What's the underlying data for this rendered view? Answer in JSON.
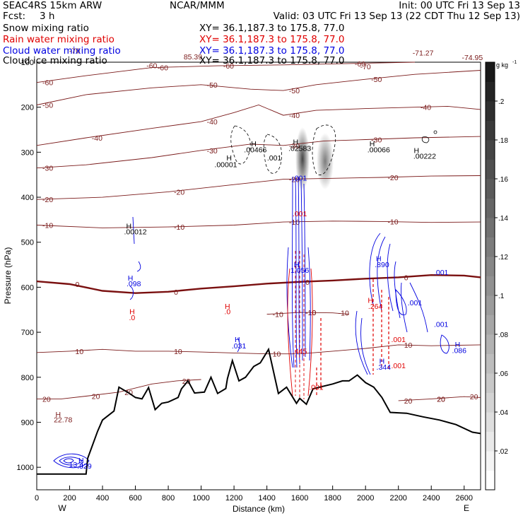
{
  "header": {
    "model": "SEAC4RS 15km ARW",
    "fcst_label": "Fcst:",
    "fcst_value": "3 h",
    "center": "NCAR/MMM",
    "init": "Init: 00 UTC Fri 13 Sep 13",
    "valid": "Valid: 03 UTC Fri 13 Sep 13 (22 CDT Thu 12 Sep 13)"
  },
  "fields": [
    {
      "name": "Snow mixing ratio",
      "xy": "XY=  36.1,187.3 to 175.8, 77.0",
      "color": "#000000"
    },
    {
      "name": "Rain water mixing ratio",
      "xy": "XY=  36.1,187.3 to 175.8, 77.0",
      "color": "#e00000"
    },
    {
      "name": "Cloud water mixing ratio",
      "xy": "XY=  36.1,187.3 to 175.8, 77.0",
      "color": "#0000e0"
    },
    {
      "name": "Cloud ice mixing ratio",
      "xy": "XY=  36.1,187.3 to 175.8, 77.0",
      "color": "#000000"
    }
  ],
  "colors": {
    "temperature": "#7a1a1a",
    "zero_isotherm": "#7a1010",
    "terrain": "#000000",
    "cloud_water": "#0000e0",
    "rain": "#e00000",
    "snow": "#000000"
  },
  "chart_data": {
    "type": "contour-cross-section",
    "xlabel": "Distance (km)",
    "ylabel": "Pressure (hPa)",
    "xlim": [
      0,
      2700
    ],
    "ylim": [
      1050,
      100
    ],
    "x_ticks": [
      "0",
      "200",
      "400",
      "600",
      "800",
      "1000",
      "1200",
      "1400",
      "1600",
      "1800",
      "2000",
      "2200",
      "2400",
      "2600"
    ],
    "y_ticks": [
      "100",
      "200",
      "300",
      "400",
      "500",
      "600",
      "700",
      "800",
      "900",
      "1000"
    ],
    "endpoints": {
      "left": "W",
      "right": "E"
    },
    "colorbar": {
      "unit": "g kg",
      "unit_exp": "-1",
      "ticks": [
        ".2",
        ".18",
        ".16",
        ".14",
        ".12",
        ".1",
        ".08",
        ".06",
        ".04",
        ".02"
      ],
      "range": [
        0,
        0.22
      ]
    },
    "isotherm_labels": [
      "-70",
      "-60",
      "-50",
      "-40",
      "-30",
      "-20",
      "-10",
      "0",
      "10",
      "20"
    ],
    "isotherms": [
      {
        "label": "-60",
        "pts": [
          [
            0,
            145
          ],
          [
            300,
            130
          ],
          [
            700,
            112
          ],
          [
            1100,
            108
          ],
          [
            1500,
            106
          ],
          [
            1900,
            103
          ],
          [
            2300,
            100
          ]
        ]
      },
      {
        "label": "-50",
        "pts": [
          [
            0,
            195
          ],
          [
            300,
            172
          ],
          [
            700,
            157
          ],
          [
            1000,
            150
          ],
          [
            1300,
            160
          ],
          [
            1500,
            163
          ],
          [
            1700,
            150
          ],
          [
            2000,
            138
          ],
          [
            2300,
            127
          ],
          [
            2700,
            118
          ]
        ]
      },
      {
        "label": "-40",
        "pts": [
          [
            0,
            285
          ],
          [
            300,
            268
          ],
          [
            700,
            247
          ],
          [
            1000,
            232
          ],
          [
            1200,
            212
          ],
          [
            1350,
            195
          ],
          [
            1500,
            218
          ],
          [
            1700,
            207
          ],
          [
            2000,
            203
          ],
          [
            2300,
            200
          ],
          [
            2500,
            198
          ],
          [
            2700,
            205
          ]
        ]
      },
      {
        "label": "-30",
        "pts": [
          [
            0,
            335
          ],
          [
            300,
            328
          ],
          [
            700,
            312
          ],
          [
            1000,
            296
          ],
          [
            1300,
            282
          ],
          [
            1500,
            285
          ],
          [
            1750,
            275
          ],
          [
            2000,
            272
          ],
          [
            2300,
            268
          ],
          [
            2700,
            265
          ]
        ]
      },
      {
        "label": "-20",
        "pts": [
          [
            0,
            405
          ],
          [
            400,
            400
          ],
          [
            800,
            388
          ],
          [
            1200,
            372
          ],
          [
            1500,
            360
          ],
          [
            1800,
            358
          ],
          [
            2100,
            356
          ],
          [
            2400,
            353
          ],
          [
            2700,
            352
          ]
        ]
      },
      {
        "label": "-10",
        "pts": [
          [
            0,
            462
          ],
          [
            400,
            468
          ],
          [
            800,
            466
          ],
          [
            1200,
            462
          ],
          [
            1500,
            455
          ],
          [
            1800,
            453
          ],
          [
            2100,
            454
          ],
          [
            2400,
            456
          ],
          [
            2700,
            455
          ]
        ]
      },
      {
        "label": "0",
        "pts": [
          [
            0,
            587
          ],
          [
            200,
            593
          ],
          [
            400,
            608
          ],
          [
            600,
            613
          ],
          [
            800,
            610
          ],
          [
            1000,
            603
          ],
          [
            1200,
            598
          ],
          [
            1400,
            592
          ],
          [
            1600,
            588
          ],
          [
            1800,
            585
          ],
          [
            2000,
            581
          ],
          [
            2200,
            578
          ],
          [
            2400,
            573
          ],
          [
            2600,
            574
          ],
          [
            2700,
            578
          ]
        ]
      },
      {
        "label": "-10",
        "pts": [
          [
            1400,
            660
          ],
          [
            1600,
            656
          ],
          [
            1800,
            657
          ],
          [
            1900,
            660
          ]
        ]
      },
      {
        "label": "10",
        "pts": [
          [
            0,
            745
          ],
          [
            200,
            742
          ],
          [
            400,
            738
          ],
          [
            600,
            742
          ],
          [
            800,
            742
          ],
          [
            1000,
            744
          ],
          [
            1200,
            746
          ],
          [
            1400,
            748
          ],
          [
            1600,
            748
          ],
          [
            1800,
            742
          ],
          [
            2000,
            736
          ],
          [
            2200,
            728
          ],
          [
            2400,
            730
          ],
          [
            2700,
            728
          ]
        ]
      },
      {
        "label": "20",
        "pts": [
          [
            0,
            848
          ],
          [
            150,
            848
          ],
          [
            300,
            842
          ],
          [
            500,
            833
          ],
          [
            700,
            815
          ],
          [
            850,
            808
          ],
          [
            1000,
            805
          ]
        ]
      },
      {
        "label": "20",
        "pts": [
          [
            2200,
            852
          ],
          [
            2400,
            848
          ],
          [
            2600,
            843
          ],
          [
            2700,
            845
          ]
        ]
      }
    ],
    "terrain_pts": [
      [
        0,
        1015
      ],
      [
        300,
        1015
      ],
      [
        310,
        980
      ],
      [
        370,
        920
      ],
      [
        400,
        895
      ],
      [
        470,
        875
      ],
      [
        500,
        822
      ],
      [
        560,
        835
      ],
      [
        600,
        845
      ],
      [
        640,
        848
      ],
      [
        680,
        823
      ],
      [
        720,
        872
      ],
      [
        760,
        858
      ],
      [
        800,
        855
      ],
      [
        860,
        845
      ],
      [
        880,
        826
      ],
      [
        920,
        808
      ],
      [
        960,
        835
      ],
      [
        1020,
        833
      ],
      [
        1060,
        800
      ],
      [
        1100,
        836
      ],
      [
        1150,
        825
      ],
      [
        1160,
        803
      ],
      [
        1190,
        763
      ],
      [
        1230,
        808
      ],
      [
        1270,
        800
      ],
      [
        1320,
        776
      ],
      [
        1360,
        768
      ],
      [
        1410,
        738
      ],
      [
        1470,
        836
      ],
      [
        1520,
        822
      ],
      [
        1580,
        858
      ],
      [
        1600,
        847
      ],
      [
        1640,
        860
      ],
      [
        1680,
        826
      ],
      [
        1720,
        822
      ],
      [
        1800,
        815
      ],
      [
        1860,
        808
      ],
      [
        1900,
        808
      ],
      [
        1950,
        795
      ],
      [
        2000,
        812
      ],
      [
        2050,
        822
      ],
      [
        2100,
        845
      ],
      [
        2150,
        878
      ],
      [
        2250,
        880
      ],
      [
        2350,
        888
      ],
      [
        2450,
        895
      ],
      [
        2550,
        905
      ],
      [
        2650,
        922
      ],
      [
        2700,
        925
      ]
    ],
    "point_labels": [
      {
        "x": 230,
        "p": 80,
        "text": "-70",
        "color": "#7a1a1a"
      },
      {
        "x": 700,
        "p": 113,
        "text": "-60",
        "color": "#7a1a1a"
      },
      {
        "x": 950,
        "p": 94,
        "text": "85.39",
        "color": "#7a1a1a"
      },
      {
        "x": 2350,
        "p": 85,
        "text": "-71.27",
        "color": "#7a1a1a"
      },
      {
        "x": 2000,
        "p": 116,
        "text": "-70",
        "color": "#7a1a1a"
      },
      {
        "x": 2650,
        "p": 95,
        "text": "-74.95",
        "color": "#7a1a1a"
      },
      {
        "x": 1170,
        "p": 318,
        "text": "H",
        "color": "#000000"
      },
      {
        "x": 1150,
        "p": 333,
        "text": ".00001",
        "color": "#000000"
      },
      {
        "x": 1320,
        "p": 287,
        "text": "H",
        "color": "#000000"
      },
      {
        "x": 1330,
        "p": 300,
        "text": ".00466",
        "color": "#000000"
      },
      {
        "x": 1445,
        "p": 318,
        "text": ".001",
        "color": "#000000"
      },
      {
        "x": 1575,
        "p": 283,
        "text": "H",
        "color": "#000000"
      },
      {
        "x": 1600,
        "p": 297,
        "text": ".02583",
        "color": "#000000"
      },
      {
        "x": 2040,
        "p": 287,
        "text": "H",
        "color": "#000000"
      },
      {
        "x": 2080,
        "p": 300,
        "text": ".00066",
        "color": "#000000"
      },
      {
        "x": 2310,
        "p": 302,
        "text": "H",
        "color": "#000000"
      },
      {
        "x": 2360,
        "p": 314,
        "text": ".00222",
        "color": "#000000"
      },
      {
        "x": 560,
        "p": 470,
        "text": "H",
        "color": "#000000"
      },
      {
        "x": 600,
        "p": 482,
        "text": ".00012",
        "color": "#000000"
      },
      {
        "x": 1600,
        "p": 363,
        "text": ".001",
        "color": "#0000e0"
      },
      {
        "x": 1600,
        "p": 442,
        "text": ".001",
        "color": "#e00000"
      },
      {
        "x": 1580,
        "p": 555,
        "text": "H",
        "color": "#0000e0"
      },
      {
        "x": 1600,
        "p": 568,
        "text": "1.056",
        "color": "#0000e0"
      },
      {
        "x": 1600,
        "p": 748,
        "text": ".445",
        "color": "#e00000"
      },
      {
        "x": 1700,
        "p": 828,
        "text": ".001",
        "color": "#e00000"
      },
      {
        "x": 570,
        "p": 585,
        "text": "H",
        "color": "#0000e0"
      },
      {
        "x": 590,
        "p": 598,
        "text": ".098",
        "color": "#0000e0"
      },
      {
        "x": 580,
        "p": 660,
        "text": "H",
        "color": "#e00000"
      },
      {
        "x": 580,
        "p": 673,
        "text": ".0",
        "color": "#e00000"
      },
      {
        "x": 1160,
        "p": 648,
        "text": "H",
        "color": "#e00000"
      },
      {
        "x": 1160,
        "p": 660,
        "text": ".0",
        "color": "#e00000"
      },
      {
        "x": 1220,
        "p": 722,
        "text": "H",
        "color": "#0000e0"
      },
      {
        "x": 1230,
        "p": 736,
        "text": ".031",
        "color": "#0000e0"
      },
      {
        "x": 2080,
        "p": 542,
        "text": "H",
        "color": "#0000e0"
      },
      {
        "x": 2100,
        "p": 555,
        "text": ".890",
        "color": "#0000e0"
      },
      {
        "x": 2460,
        "p": 573,
        "text": ".001",
        "color": "#0000e0"
      },
      {
        "x": 2300,
        "p": 640,
        "text": ".001",
        "color": "#0000e0"
      },
      {
        "x": 2460,
        "p": 688,
        "text": ".001",
        "color": "#0000e0"
      },
      {
        "x": 2030,
        "p": 635,
        "text": "H",
        "color": "#e00000"
      },
      {
        "x": 2060,
        "p": 648,
        "text": ".264",
        "color": "#e00000"
      },
      {
        "x": 2200,
        "p": 722,
        "text": ".001",
        "color": "#e00000"
      },
      {
        "x": 2560,
        "p": 733,
        "text": "H",
        "color": "#0000e0"
      },
      {
        "x": 2570,
        "p": 746,
        "text": ".086",
        "color": "#0000e0"
      },
      {
        "x": 2100,
        "p": 770,
        "text": "H",
        "color": "#0000e0"
      },
      {
        "x": 2110,
        "p": 783,
        "text": ".344",
        "color": "#0000e0"
      },
      {
        "x": 2200,
        "p": 780,
        "text": ".001",
        "color": "#e00000"
      },
      {
        "x": 130,
        "p": 888,
        "text": "H",
        "color": "#7a1a1a"
      },
      {
        "x": 160,
        "p": 900,
        "text": "22.78",
        "color": "#7a1a1a"
      },
      {
        "x": 270,
        "p": 990,
        "text": "H",
        "color": "#0000e0"
      },
      {
        "x": 240,
        "p": 1000,
        "text": "13.4",
        "color": "#0000e0"
      },
      {
        "x": 290,
        "p": 1003,
        "text": ".329",
        "color": "#0000e0"
      }
    ]
  }
}
